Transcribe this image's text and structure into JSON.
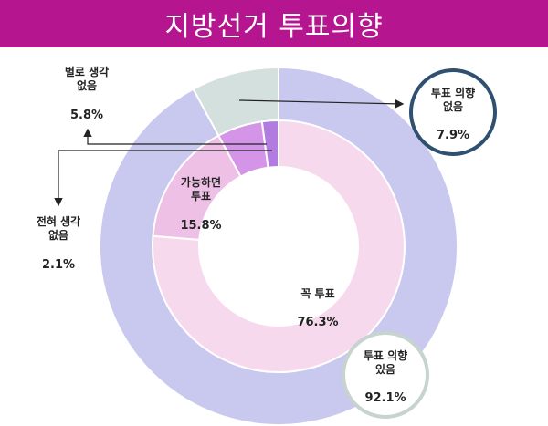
{
  "title": "지방선거 투표의향",
  "chart_data": [
    {
      "type": "pie",
      "ring": "outer",
      "categories": [
        "투표 의향 있음",
        "투표 의향 없음"
      ],
      "values": [
        92.1,
        7.9
      ],
      "value_labels": [
        "92.1%",
        "7.9%"
      ],
      "colors": [
        "#c9c8ef",
        "#d4e0dd"
      ]
    },
    {
      "type": "pie",
      "ring": "inner",
      "categories": [
        "꼭 투표",
        "가능하면 투표",
        "별로 생각 없음",
        "전혀 생각 없음"
      ],
      "values": [
        76.3,
        15.8,
        5.8,
        2.1
      ],
      "value_labels": [
        "76.3%",
        "15.8%",
        "5.8%",
        "2.1%"
      ],
      "colors": [
        "#f7d9ee",
        "#eec0e6",
        "#d494e7",
        "#b27be0"
      ]
    }
  ],
  "labels": {
    "outer_yes": {
      "line1": "투표 의향",
      "line2": "있음",
      "value": "92.1%"
    },
    "outer_no": {
      "line1": "투표 의향",
      "line2": "없음",
      "value": "7.9%"
    },
    "inner_sure": {
      "line1": "꼭 투표",
      "value": "76.3%"
    },
    "inner_maybe": {
      "line1": "가능하면",
      "line2": "투표",
      "value": "15.8%"
    },
    "inner_not_much": {
      "line1": "별로 생각",
      "line2": "없음",
      "value": "5.8%"
    },
    "inner_never": {
      "line1": "전혀 생각",
      "line2": "없음",
      "value": "2.1%"
    }
  }
}
